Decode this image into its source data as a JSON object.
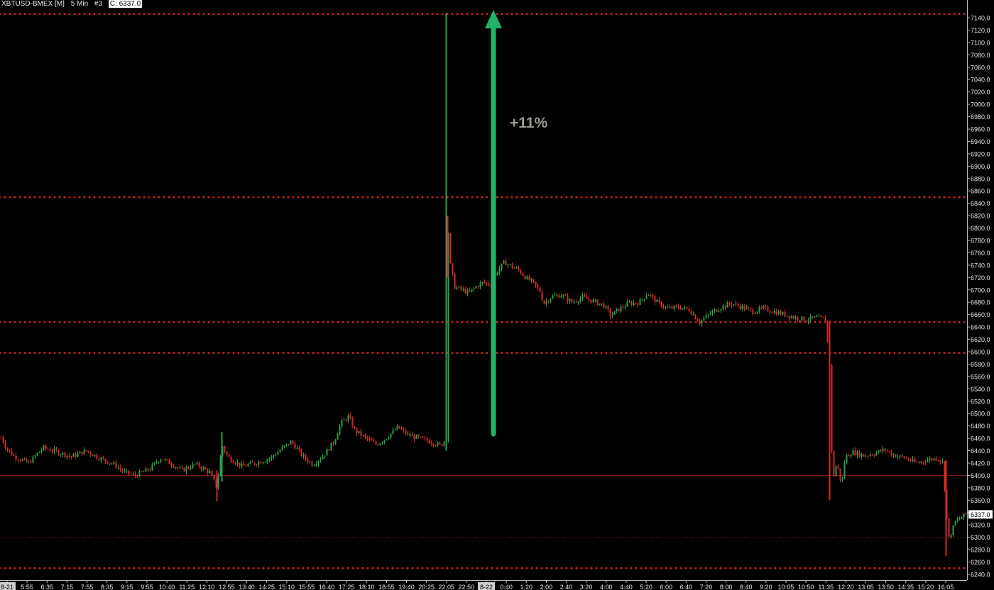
{
  "header": {
    "symbol": "XBTUSD-BMEX [M]",
    "interval": "5 Min",
    "study": "#3",
    "close_label": "C: 6337.0"
  },
  "annotation": {
    "text": "+11%",
    "arrow_color": "#20b46a",
    "text_color": "#9a9a92"
  },
  "last_price_label": "6337.0",
  "colors": {
    "background": "#000000",
    "up": "#2aa14a",
    "down": "#d9282a",
    "level_line": "#cc2222",
    "axis_text": "#e8e8e8"
  },
  "chart_data": {
    "type": "candlestick",
    "title": "",
    "xlabel": "",
    "ylabel": "",
    "ylim": [
      6232,
      7150
    ],
    "y_ticks": [
      "6240.0",
      "6260.0",
      "6280.0",
      "6300.0",
      "6320.0",
      "6340.0",
      "6360.0",
      "6380.0",
      "6400.0",
      "6420.0",
      "6440.0",
      "6460.0",
      "6480.0",
      "6500.0",
      "6520.0",
      "6540.0",
      "6560.0",
      "6580.0",
      "6600.0",
      "6620.0",
      "6640.0",
      "6660.0",
      "6680.0",
      "6700.0",
      "6720.0",
      "6740.0",
      "6760.0",
      "6780.0",
      "6800.0",
      "6820.0",
      "6840.0",
      "6860.0",
      "6880.0",
      "6900.0",
      "6920.0",
      "6940.0",
      "6960.0",
      "6980.0",
      "7000.0",
      "7020.0",
      "7040.0",
      "7060.0",
      "7080.0",
      "7100.0",
      "7120.0",
      "7140.0"
    ],
    "x_ticks": [
      "8-21",
      "5:55",
      "6:35",
      "7:15",
      "7:55",
      "8:35",
      "9:15",
      "9:55",
      "10:40",
      "11:25",
      "12:10",
      "12:55",
      "13:40",
      "14:25",
      "15:10",
      "15:55",
      "16:40",
      "17:25",
      "18:10",
      "18:55",
      "19:40",
      "20:25",
      "22:05",
      "22:50",
      "8-22",
      "0:40",
      "1:20",
      "2:00",
      "2:40",
      "3:20",
      "4:00",
      "4:40",
      "5:20",
      "6:00",
      "6:40",
      "7:20",
      "8:00",
      "8:40",
      "9:20",
      "10:05",
      "10:50",
      "11:35",
      "12:20",
      "13:05",
      "13:50",
      "14:35",
      "15:20",
      "16:05"
    ],
    "level_lines": [
      {
        "value": 7146,
        "style": "dotted-bold"
      },
      {
        "value": 6850,
        "style": "dotted-bold"
      },
      {
        "value": 6648,
        "style": "dotted-bold"
      },
      {
        "value": 6598,
        "style": "dotted-bold"
      },
      {
        "value": 6400,
        "style": "solid-thin"
      },
      {
        "value": 6300,
        "style": "dotted-thin"
      },
      {
        "value": 6250,
        "style": "dotted-bold"
      }
    ],
    "last_price": 6337.0,
    "close_path": [
      [
        0,
        6465
      ],
      [
        8,
        6445
      ],
      [
        20,
        6430
      ],
      [
        40,
        6420
      ],
      [
        60,
        6445
      ],
      [
        80,
        6438
      ],
      [
        100,
        6430
      ],
      [
        120,
        6440
      ],
      [
        140,
        6428
      ],
      [
        160,
        6418
      ],
      [
        175,
        6405
      ],
      [
        190,
        6400
      ],
      [
        210,
        6410
      ],
      [
        225,
        6428
      ],
      [
        240,
        6420
      ],
      [
        255,
        6408
      ],
      [
        275,
        6418
      ],
      [
        295,
        6405
      ],
      [
        305,
        6380
      ],
      [
        312,
        6450
      ],
      [
        320,
        6430
      ],
      [
        340,
        6415
      ],
      [
        360,
        6420
      ],
      [
        380,
        6428
      ],
      [
        395,
        6442
      ],
      [
        410,
        6455
      ],
      [
        425,
        6432
      ],
      [
        440,
        6418
      ],
      [
        455,
        6432
      ],
      [
        470,
        6455
      ],
      [
        480,
        6485
      ],
      [
        490,
        6495
      ],
      [
        500,
        6472
      ],
      [
        515,
        6460
      ],
      [
        530,
        6450
      ],
      [
        545,
        6462
      ],
      [
        560,
        6478
      ],
      [
        575,
        6465
      ],
      [
        590,
        6460
      ],
      [
        605,
        6455
      ],
      [
        620,
        6448
      ],
      [
        628,
        6460
      ],
      [
        630,
        6810
      ],
      [
        634,
        6740
      ],
      [
        640,
        6705
      ],
      [
        650,
        6700
      ],
      [
        660,
        6695
      ],
      [
        670,
        6705
      ],
      [
        680,
        6712
      ],
      [
        690,
        6708
      ],
      [
        700,
        6730
      ],
      [
        710,
        6745
      ],
      [
        720,
        6738
      ],
      [
        730,
        6732
      ],
      [
        740,
        6720
      ],
      [
        750,
        6712
      ],
      [
        760,
        6698
      ],
      [
        765,
        6678
      ],
      [
        775,
        6688
      ],
      [
        790,
        6692
      ],
      [
        805,
        6680
      ],
      [
        820,
        6688
      ],
      [
        835,
        6682
      ],
      [
        850,
        6675
      ],
      [
        860,
        6658
      ],
      [
        870,
        6668
      ],
      [
        885,
        6678
      ],
      [
        900,
        6680
      ],
      [
        912,
        6695
      ],
      [
        925,
        6680
      ],
      [
        940,
        6670
      ],
      [
        955,
        6672
      ],
      [
        970,
        6668
      ],
      [
        985,
        6648
      ],
      [
        1000,
        6662
      ],
      [
        1015,
        6672
      ],
      [
        1030,
        6678
      ],
      [
        1045,
        6672
      ],
      [
        1060,
        6665
      ],
      [
        1075,
        6670
      ],
      [
        1090,
        6665
      ],
      [
        1105,
        6660
      ],
      [
        1120,
        6655
      ],
      [
        1135,
        6652
      ],
      [
        1150,
        6655
      ],
      [
        1162,
        6652
      ],
      [
        1168,
        6580
      ],
      [
        1172,
        6390
      ],
      [
        1178,
        6420
      ],
      [
        1185,
        6385
      ],
      [
        1190,
        6430
      ],
      [
        1200,
        6438
      ],
      [
        1215,
        6432
      ],
      [
        1230,
        6435
      ],
      [
        1245,
        6442
      ],
      [
        1260,
        6432
      ],
      [
        1275,
        6428
      ],
      [
        1290,
        6420
      ],
      [
        1305,
        6425
      ],
      [
        1320,
        6428
      ],
      [
        1328,
        6420
      ],
      [
        1332,
        6340
      ],
      [
        1336,
        6298
      ],
      [
        1345,
        6325
      ],
      [
        1360,
        6337
      ]
    ],
    "spikes": [
      {
        "x": 628,
        "low": 6440,
        "high": 7148,
        "dir": "up"
      },
      {
        "x": 630,
        "low": 6720,
        "high": 6820,
        "dir": "down"
      },
      {
        "x": 1168,
        "low": 6360,
        "high": 6650,
        "dir": "down"
      },
      {
        "x": 1332,
        "low": 6270,
        "high": 6425,
        "dir": "down"
      },
      {
        "x": 305,
        "low": 6358,
        "high": 6408,
        "dir": "down"
      },
      {
        "x": 312,
        "low": 6390,
        "high": 6470,
        "dir": "up"
      }
    ]
  }
}
